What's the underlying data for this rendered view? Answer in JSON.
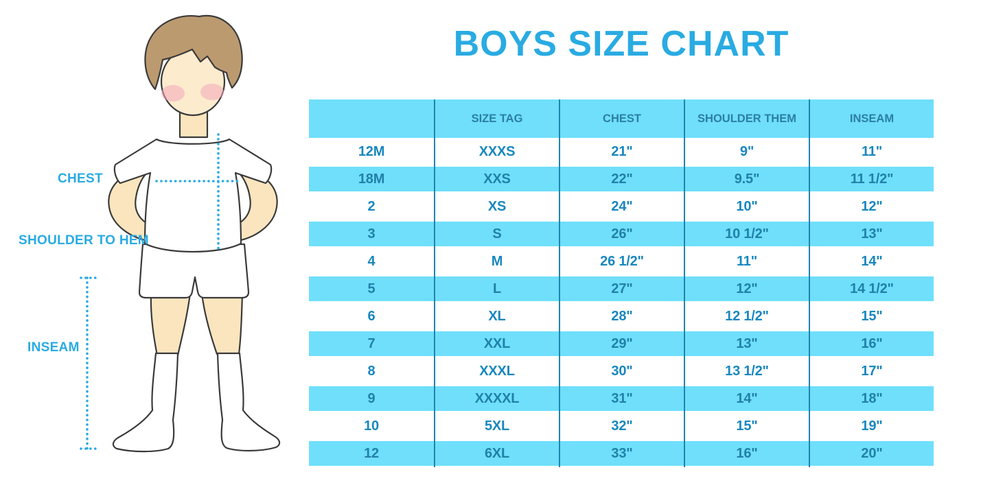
{
  "title": "BOYS SIZE CHART",
  "figure": {
    "labels": {
      "chest": "CHEST",
      "shoulder_to_hem": "SHOULDER TO HEM",
      "inseam": "INSEAM"
    }
  },
  "chart_data": {
    "type": "table",
    "title": "BOYS SIZE CHART",
    "columns": [
      "",
      "SIZE TAG",
      "CHEST",
      "SHOULDER THEM",
      "INSEAM"
    ],
    "rows": [
      [
        "12M",
        "XXXS",
        "21\"",
        "9\"",
        "11\""
      ],
      [
        "18M",
        "XXS",
        "22\"",
        "9.5\"",
        "11 1/2\""
      ],
      [
        "2",
        "XS",
        "24\"",
        "10\"",
        "12\""
      ],
      [
        "3",
        "S",
        "26\"",
        "10 1/2\"",
        "13\""
      ],
      [
        "4",
        "M",
        "26 1/2\"",
        "11\"",
        "14\""
      ],
      [
        "5",
        "L",
        "27\"",
        "12\"",
        "14 1/2\""
      ],
      [
        "6",
        "XL",
        "28\"",
        "12 1/2\"",
        "15\""
      ],
      [
        "7",
        "XXL",
        "29\"",
        "13\"",
        "16\""
      ],
      [
        "8",
        "XXXL",
        "30\"",
        "13 1/2\"",
        "17\""
      ],
      [
        "9",
        "XXXXL",
        "31\"",
        "14\"",
        "18\""
      ],
      [
        "10",
        "5XL",
        "32\"",
        "15\"",
        "19\""
      ],
      [
        "12",
        "6XL",
        "33\"",
        "16\"",
        "20\""
      ]
    ],
    "layout": {
      "row_striping": "white / cyan alternating",
      "grid": "vertical separators only"
    }
  },
  "colors": {
    "accent_blue": "#29ABE2",
    "band_cyan": "#6FDFFB",
    "header_text": "#2B7FA3",
    "cell_text": "#1887BE",
    "grid_line": "#1E84AE",
    "hair_brown": "#BC9A70",
    "skin": "#FAE5BE",
    "face_skin": "#FCEBCD",
    "cheek_pink": "#F2A8BC",
    "outline": "#3A3A3A"
  }
}
